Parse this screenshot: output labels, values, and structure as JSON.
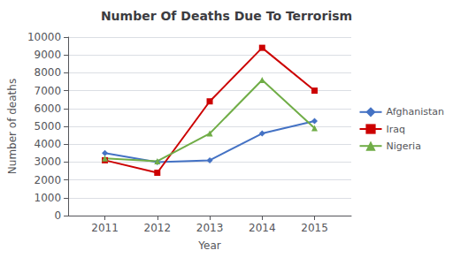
{
  "chart_data": {
    "type": "line",
    "title": "Number Of Deaths Due To Terrorism",
    "xlabel": "Year",
    "ylabel": "Number of deaths",
    "x": [
      2011,
      2012,
      2013,
      2014,
      2015
    ],
    "series": [
      {
        "name": "Afghanistan",
        "color": "#4472C4",
        "marker": "diamond",
        "values": [
          3500,
          3000,
          3100,
          4600,
          5300
        ]
      },
      {
        "name": "Iraq",
        "color": "#CC0000",
        "marker": "square",
        "values": [
          3100,
          2400,
          6400,
          9400,
          7000
        ]
      },
      {
        "name": "Nigeria",
        "color": "#70AD47",
        "marker": "triangle",
        "values": [
          3200,
          3050,
          4600,
          7600,
          4900
        ]
      }
    ],
    "xlim": [
      2010.3,
      2015.7
    ],
    "xticks": [
      2011,
      2012,
      2013,
      2014,
      2015
    ],
    "ylim": [
      0,
      10000
    ],
    "yticks": [
      0,
      1000,
      2000,
      3000,
      4000,
      5000,
      6000,
      7000,
      8000,
      9000,
      10000
    ],
    "grid": true,
    "legend": "right"
  }
}
